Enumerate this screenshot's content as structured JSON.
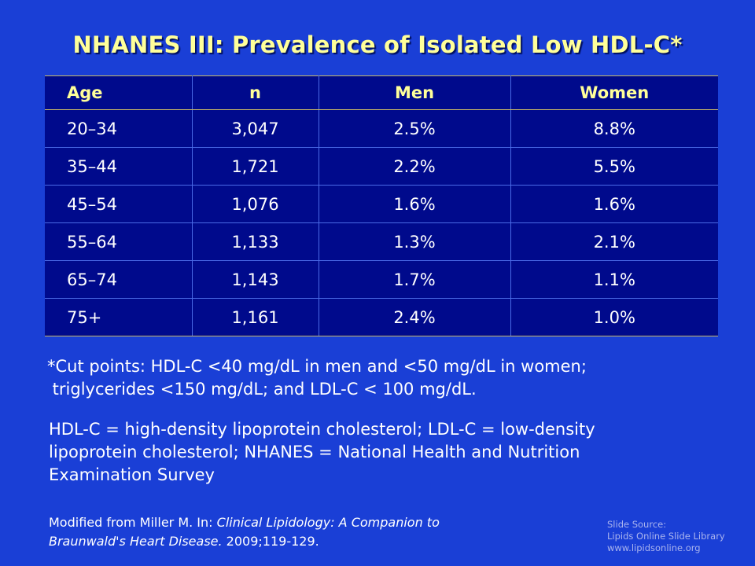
{
  "title": "NHANES III: Prevalence of Isolated Low HDL-C*",
  "table": {
    "headers": [
      "Age",
      "n",
      "Men",
      "Women"
    ],
    "rows": [
      [
        "20–34",
        "3,047",
        "2.5%",
        "8.8%"
      ],
      [
        "35–44",
        "1,721",
        "2.2%",
        "5.5%"
      ],
      [
        "45–54",
        "1,076",
        "1.6%",
        "1.6%"
      ],
      [
        "55–64",
        "1,133",
        "1.3%",
        "2.1%"
      ],
      [
        "65–74",
        "1,143",
        "1.7%",
        "1.1%"
      ],
      [
        "75+",
        "1,161",
        "2.4%",
        "1.0%"
      ]
    ]
  },
  "footnote": {
    "line1": "*Cut points: HDL-C <40 mg/dL in men and <50 mg/dL in women;",
    "line2": " triglycerides <150 mg/dL; and LDL-C < 100 mg/dL."
  },
  "abbreviations": {
    "line1": "HDL-C = high-density lipoprotein cholesterol; LDL-C = low-density",
    "line2": "lipoprotein cholesterol; NHANES = National Health and Nutrition",
    "line3": "Examination Survey"
  },
  "citation": {
    "prefix": "Modified from Miller M. In: ",
    "book_part1": "Clinical Lipidology: A Companion to",
    "book_part2": "Braunwald's Heart Disease.",
    "suffix": " 2009;119-129."
  },
  "slide_source": {
    "line1": "Slide Source:",
    "line2": "Lipids Online Slide Library",
    "line3": "www.lipidsonline.org"
  },
  "colors": {
    "background": "#1a3fd6",
    "table_fill": "#000a8c",
    "title": "#ffff99",
    "header_text": "#ffff99"
  }
}
